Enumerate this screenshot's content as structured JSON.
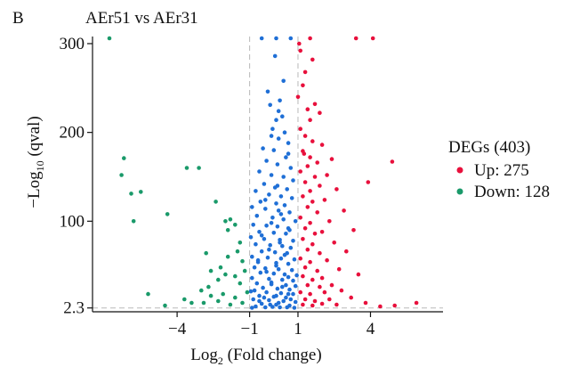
{
  "panel_label": "B",
  "chart_data": {
    "type": "scatter",
    "title": "AEr51 vs AEr31",
    "xlabel": {
      "main": "Log",
      "sub": "2",
      "rest": " (Fold change)"
    },
    "ylabel": {
      "main": "−Log",
      "sub": "10",
      "rest": " (qval)"
    },
    "xlim": [
      -7.5,
      7.0
    ],
    "ylim": [
      -2,
      308
    ],
    "xticks": [
      -4,
      -1,
      1,
      4
    ],
    "xtick_labels": [
      "−4",
      "−1",
      "1",
      "4"
    ],
    "yticks": [
      2.3,
      100,
      200,
      300
    ],
    "ytick_labels": [
      "2.3",
      "100",
      "200",
      "300"
    ],
    "thresholds": {
      "x": [
        -1,
        1
      ],
      "y": 2.3
    },
    "grid": false,
    "legend": {
      "title": "DEGs (403)",
      "position": "right",
      "items": [
        {
          "label": "Up: 275",
          "color": "#e8103c"
        },
        {
          "label": "Down: 128",
          "color": "#1a9a6a"
        }
      ]
    },
    "colors": {
      "up": "#e8103c",
      "down": "#1a9a6a",
      "ns": "#1f6fd6"
    },
    "series": [
      {
        "key": "up",
        "points": [
          [
            1.1,
            292
          ],
          [
            1.6,
            282
          ],
          [
            1.3,
            268
          ],
          [
            1.2,
            253
          ],
          [
            1.0,
            240
          ],
          [
            1.7,
            232
          ],
          [
            1.4,
            226
          ],
          [
            1.9,
            222
          ],
          [
            1.5,
            214
          ],
          [
            1.1,
            204
          ],
          [
            1.3,
            196
          ],
          [
            1.6,
            190
          ],
          [
            2.0,
            186
          ],
          [
            1.2,
            179
          ],
          [
            1.5,
            172
          ],
          [
            1.8,
            166
          ],
          [
            2.4,
            170
          ],
          [
            1.4,
            162
          ],
          [
            1.1,
            156
          ],
          [
            1.7,
            150
          ],
          [
            2.2,
            152
          ],
          [
            1.3,
            144
          ],
          [
            1.9,
            140
          ],
          [
            1.5,
            134
          ],
          [
            2.6,
            136
          ],
          [
            1.2,
            128
          ],
          [
            1.6,
            122
          ],
          [
            2.1,
            124
          ],
          [
            1.4,
            116
          ],
          [
            1.8,
            110
          ],
          [
            2.9,
            112
          ],
          [
            1.1,
            104
          ],
          [
            1.5,
            98
          ],
          [
            2.3,
            100
          ],
          [
            1.3,
            92
          ],
          [
            1.7,
            86
          ],
          [
            2.0,
            88
          ],
          [
            3.3,
            90
          ],
          [
            1.2,
            80
          ],
          [
            1.6,
            74
          ],
          [
            2.5,
            76
          ],
          [
            1.4,
            68
          ],
          [
            1.9,
            64
          ],
          [
            3.0,
            66
          ],
          [
            1.1,
            58
          ],
          [
            1.5,
            54
          ],
          [
            2.2,
            56
          ],
          [
            1.3,
            48
          ],
          [
            1.8,
            44
          ],
          [
            2.7,
            46
          ],
          [
            1.2,
            38
          ],
          [
            1.6,
            34
          ],
          [
            2.0,
            36
          ],
          [
            3.5,
            40
          ],
          [
            1.4,
            28
          ],
          [
            1.9,
            26
          ],
          [
            2.4,
            28
          ],
          [
            1.1,
            20
          ],
          [
            1.5,
            18
          ],
          [
            2.1,
            20
          ],
          [
            2.8,
            22
          ],
          [
            1.3,
            12
          ],
          [
            1.7,
            10
          ],
          [
            2.3,
            12
          ],
          [
            3.2,
            14
          ],
          [
            1.2,
            6
          ],
          [
            1.6,
            5
          ],
          [
            2.0,
            7
          ],
          [
            2.6,
            6
          ],
          [
            3.8,
            8
          ],
          [
            4.9,
            167
          ],
          [
            3.9,
            144
          ],
          [
            5.9,
            8
          ],
          [
            4.4,
            4
          ],
          [
            5.0,
            5
          ],
          [
            1.05,
            300
          ],
          [
            1.5,
            306
          ],
          [
            3.4,
            306
          ],
          [
            4.1,
            306
          ],
          [
            1.25,
            176
          ]
        ]
      },
      {
        "key": "down",
        "points": [
          [
            -6.2,
            171
          ],
          [
            -6.3,
            152
          ],
          [
            -5.9,
            131
          ],
          [
            -5.5,
            133
          ],
          [
            -5.8,
            100
          ],
          [
            -4.4,
            108
          ],
          [
            -3.6,
            160
          ],
          [
            -3.1,
            160
          ],
          [
            -2.4,
            122
          ],
          [
            -2.0,
            100
          ],
          [
            -1.8,
            102
          ],
          [
            -1.6,
            96
          ],
          [
            -1.9,
            90
          ],
          [
            -1.4,
            76
          ],
          [
            -1.5,
            66
          ],
          [
            -2.8,
            64
          ],
          [
            -2.2,
            48
          ],
          [
            -1.9,
            60
          ],
          [
            -1.3,
            55
          ],
          [
            -2.6,
            44
          ],
          [
            -2.0,
            40
          ],
          [
            -1.6,
            38
          ],
          [
            -2.3,
            34
          ],
          [
            -1.4,
            30
          ],
          [
            -3.0,
            22
          ],
          [
            -2.6,
            16
          ],
          [
            -2.1,
            18
          ],
          [
            -1.6,
            14
          ],
          [
            -3.7,
            12
          ],
          [
            -3.4,
            8
          ],
          [
            -2.9,
            8
          ],
          [
            -2.3,
            10
          ],
          [
            -1.8,
            6
          ],
          [
            -4.5,
            5
          ],
          [
            -1.3,
            8
          ],
          [
            -1.1,
            20
          ],
          [
            -5.2,
            18
          ],
          [
            -2.7,
            26
          ],
          [
            -1.2,
            44
          ],
          [
            -6.8,
            306
          ]
        ]
      },
      {
        "key": "ns",
        "points": [
          [
            0.05,
            286
          ],
          [
            -0.25,
            246
          ],
          [
            -0.15,
            231
          ],
          [
            0.25,
            236
          ],
          [
            0.1,
            214
          ],
          [
            0.35,
            218
          ],
          [
            -0.05,
            204
          ],
          [
            0.45,
            200
          ],
          [
            0.2,
            193
          ],
          [
            0.6,
            188
          ],
          [
            -0.45,
            182
          ],
          [
            0.0,
            180
          ],
          [
            0.5,
            172
          ],
          [
            -0.3,
            168
          ],
          [
            0.15,
            164
          ],
          [
            0.7,
            160
          ],
          [
            -0.6,
            156
          ],
          [
            -0.1,
            152
          ],
          [
            0.4,
            150
          ],
          [
            0.8,
            146
          ],
          [
            -0.4,
            142
          ],
          [
            0.05,
            138
          ],
          [
            0.55,
            136
          ],
          [
            -0.75,
            134
          ],
          [
            -0.2,
            130
          ],
          [
            0.3,
            128
          ],
          [
            0.75,
            126
          ],
          [
            -0.55,
            122
          ],
          [
            0.1,
            120
          ],
          [
            0.45,
            118
          ],
          [
            -0.9,
            116
          ],
          [
            -0.35,
            114
          ],
          [
            0.2,
            112
          ],
          [
            0.65,
            110
          ],
          [
            -0.7,
            106
          ],
          [
            -0.05,
            104
          ],
          [
            0.4,
            102
          ],
          [
            0.9,
            100
          ],
          [
            -0.85,
            96
          ],
          [
            -0.3,
            95
          ],
          [
            0.15,
            94
          ],
          [
            0.6,
            92
          ],
          [
            -0.6,
            88
          ],
          [
            0.0,
            87
          ],
          [
            0.5,
            86
          ],
          [
            -0.95,
            82
          ],
          [
            -0.4,
            80
          ],
          [
            0.25,
            79
          ],
          [
            0.8,
            78
          ],
          [
            -0.75,
            74
          ],
          [
            -0.15,
            73
          ],
          [
            0.35,
            72
          ],
          [
            0.7,
            70
          ],
          [
            -0.5,
            66
          ],
          [
            0.05,
            65
          ],
          [
            0.55,
            64
          ],
          [
            -0.9,
            60
          ],
          [
            -0.25,
            59
          ],
          [
            0.3,
            58
          ],
          [
            0.85,
            57
          ],
          [
            -0.65,
            54
          ],
          [
            0.1,
            53
          ],
          [
            0.6,
            52
          ],
          [
            -0.8,
            48
          ],
          [
            -0.35,
            47
          ],
          [
            0.2,
            46
          ],
          [
            0.75,
            45
          ],
          [
            -0.55,
            42
          ],
          [
            0.0,
            41
          ],
          [
            0.45,
            40
          ],
          [
            0.95,
            39
          ],
          [
            -0.9,
            36
          ],
          [
            -0.2,
            35
          ],
          [
            0.35,
            34
          ],
          [
            0.8,
            33
          ],
          [
            -0.7,
            30
          ],
          [
            -0.1,
            29
          ],
          [
            0.5,
            28
          ],
          [
            0.9,
            27
          ],
          [
            -0.45,
            25
          ],
          [
            0.15,
            24
          ],
          [
            0.65,
            23
          ],
          [
            -0.95,
            21
          ],
          [
            -0.3,
            20
          ],
          [
            0.3,
            19
          ],
          [
            0.8,
            18
          ],
          [
            -0.6,
            16
          ],
          [
            0.0,
            15
          ],
          [
            0.5,
            14
          ],
          [
            -0.85,
            12
          ],
          [
            -0.2,
            11
          ],
          [
            0.4,
            10
          ],
          [
            0.9,
            9
          ],
          [
            -0.5,
            7
          ],
          [
            0.1,
            6
          ],
          [
            0.65,
            5
          ],
          [
            -0.75,
            4
          ],
          [
            -0.05,
            3.5
          ],
          [
            0.55,
            3
          ],
          [
            -0.35,
            3
          ],
          [
            0.25,
            3
          ],
          [
            -0.9,
            2.5
          ],
          [
            0.85,
            2.5
          ],
          [
            -0.15,
            6
          ],
          [
            0.2,
            8
          ],
          [
            -0.6,
            10
          ],
          [
            0.7,
            12
          ],
          [
            -0.4,
            14
          ],
          [
            0.1,
            16
          ],
          [
            0.6,
            18
          ],
          [
            -0.8,
            22
          ],
          [
            0.35,
            26
          ],
          [
            -0.1,
            31
          ],
          [
            0.6,
            37
          ],
          [
            -0.3,
            43
          ],
          [
            0.1,
            50
          ],
          [
            -0.65,
            56
          ],
          [
            0.45,
            62
          ],
          [
            -0.2,
            68
          ],
          [
            0.25,
            76
          ],
          [
            -0.5,
            84
          ],
          [
            0.65,
            90
          ],
          [
            -0.1,
            98
          ],
          [
            0.3,
            108
          ],
          [
            -0.35,
            124
          ],
          [
            0.15,
            140
          ],
          [
            0.6,
            176
          ],
          [
            -0.1,
            196
          ],
          [
            0.2,
            224
          ],
          [
            0.4,
            258
          ],
          [
            0.7,
            306
          ],
          [
            0.1,
            306
          ],
          [
            -0.5,
            306
          ]
        ]
      }
    ]
  }
}
